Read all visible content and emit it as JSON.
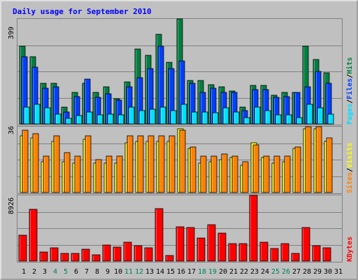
{
  "title": "Daily usage for September 2010",
  "colors": {
    "background": "#c0c0c0",
    "title": "#0000ff",
    "hits": "#008040",
    "files": "#0040ff",
    "pages": "#00e0ff",
    "visits": "#ff8000",
    "sites": "#ffff00",
    "kbytes": "#ff0000",
    "weekend_label": "#00805c",
    "weekday_label": "#000000"
  },
  "legend": {
    "hits": "Hits",
    "files": "Files",
    "pages": "Pages",
    "sep": "/",
    "visits": "Visits",
    "sites": "Sites",
    "kbytes": "KBytes"
  },
  "axis_max": {
    "hits": "399",
    "visits": "36",
    "kbytes": "8926"
  },
  "chart_data": {
    "type": "bar",
    "title": "Daily usage for September 2010",
    "categories": [
      "1",
      "2",
      "3",
      "4",
      "5",
      "6",
      "7",
      "8",
      "9",
      "10",
      "11",
      "12",
      "13",
      "14",
      "15",
      "16",
      "17",
      "18",
      "19",
      "20",
      "21",
      "22",
      "23",
      "24",
      "25",
      "26",
      "27",
      "28",
      "29",
      "30",
      "31"
    ],
    "weekend_days": [
      "4",
      "5",
      "11",
      "12",
      "18",
      "19",
      "25",
      "26"
    ],
    "panels": [
      {
        "name": "hits_files_pages",
        "ymax": 399,
        "series": [
          {
            "name": "Hits",
            "values": [
              295,
              255,
              155,
              155,
              65,
              120,
              155,
              120,
              140,
              95,
              160,
              285,
              260,
              340,
              235,
              399,
              165,
              165,
              150,
              140,
              125,
              65,
              145,
              145,
              110,
              120,
              120,
              295,
              245,
              195,
              0
            ]
          },
          {
            "name": "Files",
            "values": [
              255,
              215,
              135,
              140,
              45,
              105,
              170,
              100,
              115,
              90,
              140,
              175,
              210,
              295,
              210,
              240,
              155,
              120,
              135,
              120,
              120,
              50,
              130,
              130,
              100,
              105,
              120,
              140,
              200,
              155,
              0
            ]
          },
          {
            "name": "Pages",
            "values": [
              65,
              75,
              60,
              38,
              22,
              32,
              45,
              35,
              38,
              35,
              65,
              50,
              55,
              65,
              50,
              75,
              45,
              45,
              42,
              62,
              45,
              25,
              65,
              50,
              35,
              35,
              25,
              75,
              60,
              38,
              0
            ]
          }
        ]
      },
      {
        "name": "visits_sites",
        "ymax": 36,
        "series": [
          {
            "name": "Visits",
            "values": [
              34,
              32,
              20,
              31,
              22,
              20,
              31,
              18,
              20,
              20,
              31,
              31,
              31,
              31,
              31,
              34,
              25,
              20,
              20,
              21,
              20,
              17,
              26,
              20,
              20,
              20,
              25,
              36,
              36,
              30,
              0
            ]
          },
          {
            "name": "Sites",
            "values": [
              31,
              30,
              17,
              28,
              17,
              16,
              29,
              16,
              16,
              16,
              27,
              28,
              28,
              28,
              28,
              35,
              24,
              16,
              17,
              18,
              19,
              15,
              27,
              19,
              16,
              17,
              24,
              35,
              35,
              28,
              0
            ]
          }
        ]
      },
      {
        "name": "kbytes",
        "ymax": 8926,
        "series": [
          {
            "name": "KBytes",
            "values": [
              3500,
              7000,
              1200,
              1800,
              1000,
              1000,
              1600,
              900,
              2200,
              1900,
              2600,
              2100,
              1800,
              7100,
              800,
              4700,
              4600,
              3100,
              4900,
              3800,
              2400,
              2400,
              8926,
              2600,
              1700,
              2400,
              1000,
              4600,
              2100,
              1800,
              0
            ]
          }
        ]
      }
    ]
  }
}
